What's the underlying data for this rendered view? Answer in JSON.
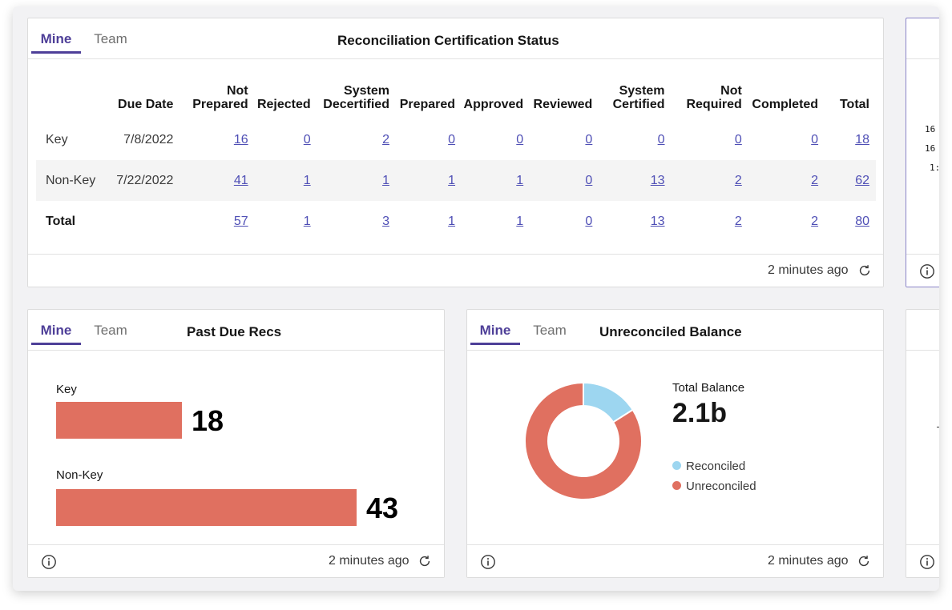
{
  "cert_card": {
    "tabs": [
      "Mine",
      "Team"
    ],
    "title": "Reconciliation Certification Status",
    "columns": [
      {
        "line1": "",
        "line2": "Due Date"
      },
      {
        "line1": "Not",
        "line2": "Prepared"
      },
      {
        "line1": "",
        "line2": "Rejected"
      },
      {
        "line1": "System",
        "line2": "Decertified"
      },
      {
        "line1": "",
        "line2": "Prepared"
      },
      {
        "line1": "",
        "line2": "Approved"
      },
      {
        "line1": "",
        "line2": "Reviewed"
      },
      {
        "line1": "System",
        "line2": "Certified"
      },
      {
        "line1": "Not",
        "line2": "Required"
      },
      {
        "line1": "",
        "line2": "Completed"
      },
      {
        "line1": "",
        "line2": "Total"
      }
    ],
    "rows": [
      {
        "label": "Key",
        "due": "7/8/2022",
        "values": [
          "16",
          "0",
          "2",
          "0",
          "0",
          "0",
          "0",
          "0",
          "0",
          "18"
        ]
      },
      {
        "label": "Non-Key",
        "due": "7/22/2022",
        "values": [
          "41",
          "1",
          "1",
          "1",
          "1",
          "0",
          "13",
          "2",
          "2",
          "62"
        ]
      },
      {
        "label": "Total",
        "due": "",
        "values": [
          "57",
          "1",
          "3",
          "1",
          "1",
          "0",
          "13",
          "2",
          "2",
          "80"
        ]
      }
    ],
    "updated": "2 minutes ago"
  },
  "past_due_card": {
    "tabs": [
      "Mine",
      "Team"
    ],
    "title": "Past Due Recs",
    "bars": [
      {
        "label": "Key",
        "value": 18
      },
      {
        "label": "Non-Key",
        "value": 43
      }
    ],
    "updated": "2 minutes ago"
  },
  "unreconciled_card": {
    "tabs": [
      "Mine",
      "Team"
    ],
    "title": "Unreconciled Balance",
    "total_label": "Total Balance",
    "total_value": "2.1b",
    "legend": [
      {
        "label": "Reconciled",
        "color": "#9dd6f0"
      },
      {
        "label": "Unreconciled",
        "color": "#e07060"
      }
    ],
    "donut_fractions": {
      "reconciled": 0.16,
      "unreconciled": 0.84
    },
    "updated": "2 minutes ago"
  },
  "partial_card": {
    "numbers": [
      "16",
      "16",
      "1:"
    ]
  },
  "colors": {
    "accent": "#4e3f98",
    "bar": "#e07060",
    "link": "#4e4eb5"
  },
  "icons": {
    "info": "info-icon",
    "refresh": "refresh-icon"
  }
}
